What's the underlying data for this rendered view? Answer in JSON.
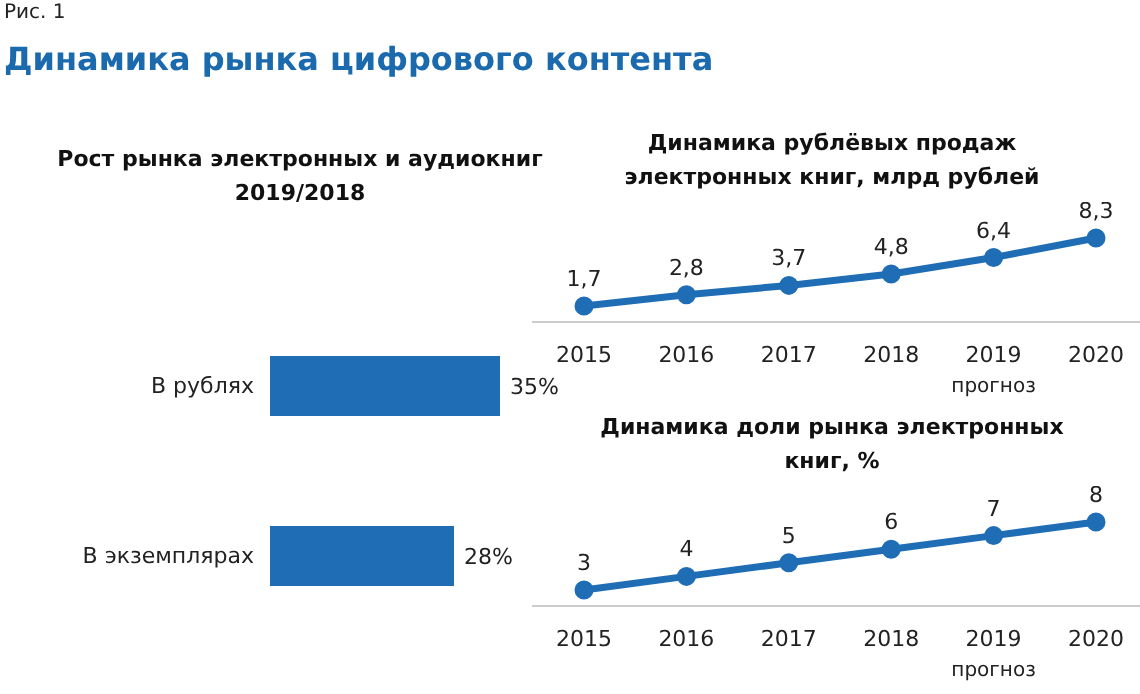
{
  "chart_data": [
    {
      "type": "bar",
      "orientation": "horizontal",
      "title": "Рост рынка электронных и аудиокниг\n2019/2018",
      "annotations": [
        "Рис. 1",
        "Динамика рынка цифрового контента"
      ],
      "categories": [
        "В рублях",
        "В экземплярах"
      ],
      "values": [
        35,
        28
      ],
      "value_labels": [
        "35%",
        "28%"
      ],
      "color": "#1f6db5"
    },
    {
      "type": "line",
      "title": "Динамика рублёвых продаж\nэлектронных книг, млрд рублей",
      "categories": [
        "2015",
        "2016",
        "2017",
        "2018",
        "2019",
        "2020"
      ],
      "values": [
        1.7,
        2.8,
        3.7,
        4.8,
        6.4,
        8.3
      ],
      "value_labels": [
        "1,7",
        "2,8",
        "3,7",
        "4,8",
        "6,4",
        "8,3"
      ],
      "color": "#1f6db5",
      "marker": "circle",
      "annotations": [
        "прогноз"
      ]
    },
    {
      "type": "line",
      "title": "Динамика доли рынка электронных\nкниг, %",
      "categories": [
        "2015",
        "2016",
        "2017",
        "2018",
        "2019",
        "2020"
      ],
      "values": [
        3,
        4,
        5,
        6,
        7,
        8
      ],
      "value_labels": [
        "3",
        "4",
        "5",
        "6",
        "7",
        "8"
      ],
      "color": "#1f6db5",
      "marker": "circle",
      "annotations": [
        "прогноз"
      ]
    }
  ]
}
